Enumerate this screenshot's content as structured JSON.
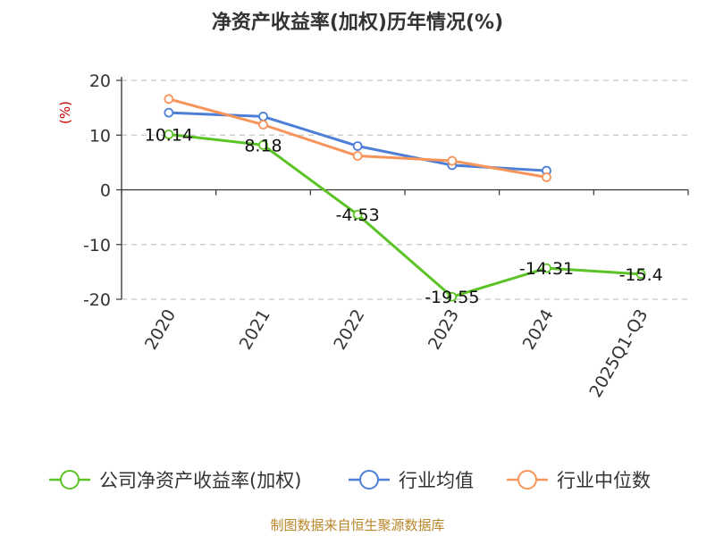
{
  "chart_data": {
    "type": "line",
    "title": "净资产收益率(加权)历年情况(%)",
    "ylabel": "(%)",
    "xlabel": "",
    "categories": [
      "2020",
      "2021",
      "2022",
      "2023",
      "2024",
      "2025Q1-Q3"
    ],
    "ylim": [
      -20,
      20
    ],
    "yticks": [
      20,
      10,
      0,
      -10,
      -20
    ],
    "grid": true,
    "legend_position": "bottom",
    "series": [
      {
        "name": "公司净资产收益率(加权)",
        "color": "#5cc326",
        "values": [
          10.14,
          8.18,
          -4.53,
          -19.55,
          -14.31,
          -15.4
        ],
        "labels": [
          "10.14",
          "8.18",
          "-4.53",
          "-19.55",
          "-14.31",
          "-15.4"
        ]
      },
      {
        "name": "行业均值",
        "color": "#4e7fd6",
        "values": [
          14.1,
          13.4,
          8.0,
          4.5,
          3.5,
          null
        ]
      },
      {
        "name": "行业中位数",
        "color": "#f7945a",
        "values": [
          16.6,
          11.9,
          6.2,
          5.3,
          2.3,
          null
        ]
      }
    ]
  },
  "source": "制图数据来自恒生聚源数据库"
}
